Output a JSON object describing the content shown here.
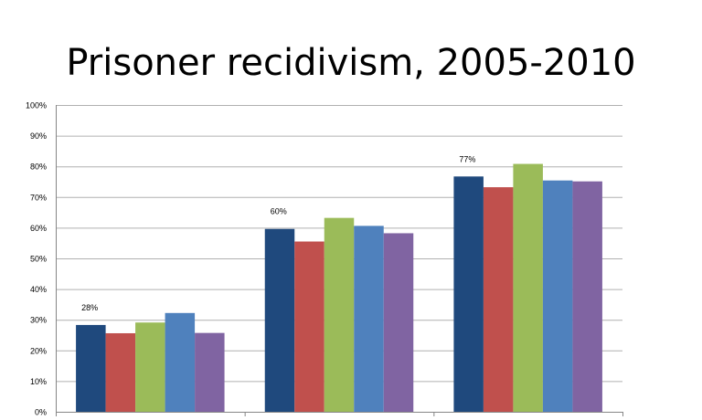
{
  "chart_data": {
    "type": "bar",
    "title": "Prisoner recidivism, 2005-2010",
    "xlabel": "",
    "ylabel": "",
    "ylim": [
      0,
      100
    ],
    "y_ticks": [
      "0%",
      "10%",
      "20%",
      "30%",
      "40%",
      "50%",
      "60%",
      "70%",
      "80%",
      "90%",
      "100%"
    ],
    "y_tick_values": [
      0,
      10,
      20,
      30,
      40,
      50,
      60,
      70,
      80,
      90,
      100
    ],
    "categories": [
      "",
      "",
      ""
    ],
    "series": [
      {
        "color": "#1F497D",
        "values": [
          28.3,
          59.6,
          76.7
        ]
      },
      {
        "color": "#C0504D",
        "values": [
          25.6,
          55.5,
          73.2
        ]
      },
      {
        "color": "#9BBB59",
        "values": [
          29.1,
          63.2,
          80.8
        ]
      },
      {
        "color": "#4F81BD",
        "values": [
          32.2,
          60.6,
          75.4
        ]
      },
      {
        "color": "#8064A2",
        "values": [
          25.7,
          58.2,
          75.1
        ]
      }
    ],
    "data_labels": [
      {
        "text": "28%",
        "category": 0,
        "series": 0
      },
      {
        "text": "60%",
        "category": 1,
        "series": 0
      },
      {
        "text": "77%",
        "category": 2,
        "series": 0
      }
    ],
    "grid": true,
    "legend": "none"
  }
}
